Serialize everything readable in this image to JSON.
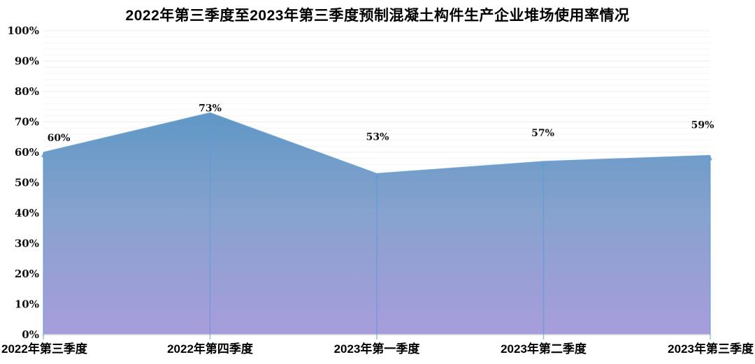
{
  "chart_data": {
    "type": "area",
    "title": "2022年第三季度至2023年第三季度预制混凝土构件生产企业堆场使用率情况",
    "categories": [
      "2022年第三季度",
      "2022年第四季度",
      "2023年第一季度",
      "2023年第二季度",
      "2023年第三季度"
    ],
    "values": [
      60,
      73,
      53,
      57,
      59
    ],
    "data_labels": [
      "60%",
      "73%",
      "53%",
      "57%",
      "59%"
    ],
    "y_ticks": [
      "0%",
      "10%",
      "20%",
      "30%",
      "40%",
      "50%",
      "60%",
      "70%",
      "80%",
      "90%",
      "100%"
    ],
    "xlabel": "",
    "ylabel": "",
    "ylim": [
      0,
      100
    ],
    "legend_position": "none",
    "gridlines": "horizontal, minor every 2%, major every 10%",
    "colors": {
      "area_gradient_top": "#5f97c5",
      "area_gradient_mid": "#87a2ce",
      "area_gradient_bottom": "#a89ddc",
      "area_edge_line": "#6aa2cf",
      "drop_line": "#5b9bd5",
      "gridline_minor": "#f4f4f4",
      "gridline_major": "#ececec",
      "axis_line": "#d9d9d9",
      "text": "#000000"
    }
  }
}
